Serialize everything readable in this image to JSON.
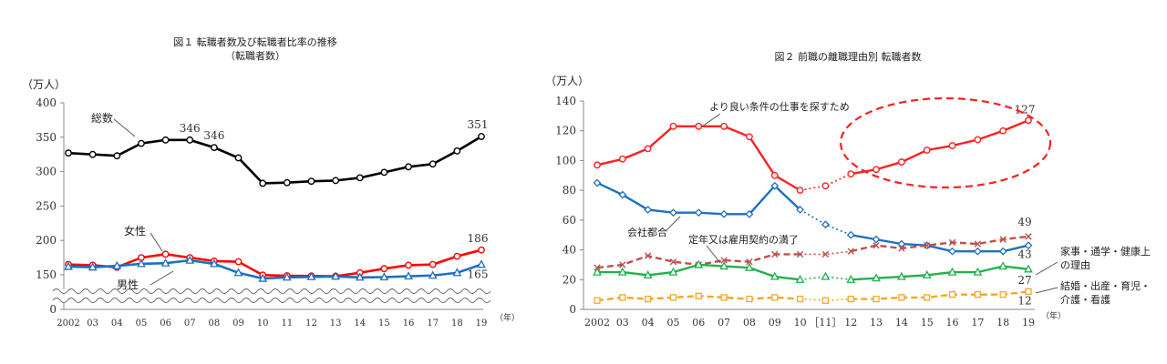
{
  "chart_data": [
    {
      "type": "line",
      "title": "図１ 転職者数及び転職者比率の推移",
      "subtitle": "（転職者数）",
      "ylabel": "（万人）",
      "xlabel": "（年）",
      "ylim": [
        0,
        400
      ],
      "yticks": [
        "0",
        "150",
        "200",
        "250",
        "300",
        "350",
        "400"
      ],
      "axis_break": true,
      "grid": false,
      "x": [
        "2002",
        "03",
        "04",
        "05",
        "06",
        "07",
        "08",
        "09",
        "10",
        "11",
        "12",
        "13",
        "14",
        "15",
        "16",
        "17",
        "18",
        "19"
      ],
      "series": [
        {
          "name": "総数",
          "color": "#000000",
          "marker": "circle",
          "style": "solid",
          "values": [
            327,
            325,
            323,
            341,
            346,
            346,
            335,
            320,
            283,
            284,
            286,
            287,
            291,
            299,
            307,
            311,
            330,
            351
          ],
          "labels": [
            {
              "i": 5,
              "text": "346"
            },
            {
              "i": 6,
              "text": "346"
            },
            {
              "i": 17,
              "text": "351"
            }
          ]
        },
        {
          "name": "女性",
          "color": "#ff0000",
          "marker": "circle",
          "style": "solid",
          "values": [
            165,
            164,
            161,
            175,
            180,
            175,
            170,
            169,
            149,
            146,
            145,
            144,
            153,
            159,
            164,
            165,
            177,
            186
          ],
          "labels": [
            {
              "i": 17,
              "text": "186"
            }
          ]
        },
        {
          "name": "男性",
          "color": "#1f6fc0",
          "marker": "triangle",
          "style": "solid",
          "values": [
            162,
            161,
            163,
            166,
            167,
            171,
            166,
            153,
            134,
            139,
            141,
            143,
            139,
            140,
            144,
            147,
            153,
            165
          ],
          "labels": [
            {
              "i": 17,
              "text": "165"
            }
          ]
        }
      ]
    },
    {
      "type": "line",
      "title": "図２ 前職の離職理由別 転職者数",
      "ylabel": "（万人）",
      "xlabel": "（年）",
      "ylim": [
        0,
        140
      ],
      "yticks": [
        "0",
        "20",
        "40",
        "60",
        "80",
        "100",
        "120",
        "140"
      ],
      "grid": false,
      "x": [
        "2002",
        "03",
        "04",
        "05",
        "06",
        "07",
        "08",
        "09",
        "10",
        "11",
        "12",
        "13",
        "14",
        "15",
        "16",
        "17",
        "18",
        "19"
      ],
      "bracket_label": "11",
      "dotted_segment": [
        8,
        10
      ],
      "highlight": "2012-2019 より良い条件 circled",
      "series": [
        {
          "name": "より良い条件の仕事を探すため",
          "color": "#ff2020",
          "marker": "circle",
          "style": "solid",
          "values": [
            97,
            101,
            108,
            123,
            123,
            123,
            116,
            90,
            80,
            83,
            91,
            94,
            99,
            107,
            110,
            114,
            120,
            127
          ],
          "labels": [
            {
              "i": 17,
              "text": "127"
            }
          ]
        },
        {
          "name": "会社都合",
          "color": "#1f6fc0",
          "marker": "diamond",
          "style": "solid",
          "values": [
            85,
            77,
            67,
            65,
            65,
            64,
            64,
            83,
            67,
            57,
            50,
            47,
            44,
            43,
            39,
            39,
            39,
            43
          ],
          "labels": [
            {
              "i": 17,
              "text": "43"
            }
          ]
        },
        {
          "name": "定年又は雇用契約の満了",
          "color": "#c0504d",
          "marker": "x",
          "style": "dashed",
          "values": [
            28,
            30,
            36,
            32,
            30,
            33,
            32,
            37,
            37,
            37,
            39,
            43,
            41,
            43,
            45,
            44,
            47,
            49
          ],
          "labels": [
            {
              "i": 17,
              "text": "49"
            }
          ]
        },
        {
          "name": "家事・通学・健康上の理由",
          "color": "#22b14c",
          "marker": "triangle",
          "style": "solid",
          "values": [
            25,
            25,
            23,
            25,
            30,
            29,
            28,
            22,
            20,
            22,
            20,
            21,
            22,
            23,
            25,
            25,
            29,
            27
          ],
          "labels": [
            {
              "i": 17,
              "text": "27"
            }
          ]
        },
        {
          "name": "結婚・出産・育児・介護・看護",
          "color": "#f5a623",
          "marker": "square",
          "style": "dashed",
          "values": [
            6,
            8,
            7,
            8,
            9,
            8,
            7,
            8,
            7,
            6,
            7,
            7,
            8,
            8,
            10,
            10,
            10,
            12
          ],
          "labels": [
            {
              "i": 17,
              "text": "12"
            }
          ]
        }
      ]
    }
  ]
}
